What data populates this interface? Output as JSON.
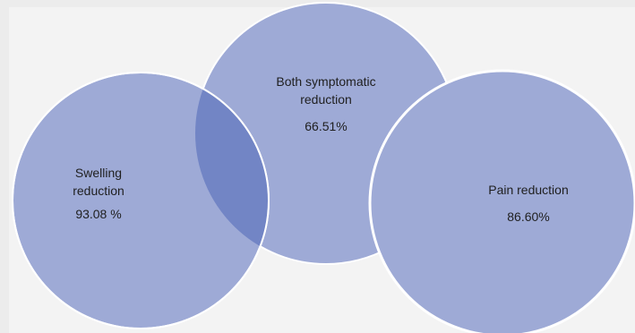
{
  "diagram": {
    "colors": {
      "circle_fill": "#9eaad6",
      "circle_stroke": "#ffffff",
      "overlap_fill": "#7285c5",
      "background": "#f3f3f3"
    },
    "sets": [
      {
        "name_line1": "Swelling",
        "name_line2": "reduction",
        "value": "93.08 %"
      },
      {
        "name_line1": "Both symptomatic",
        "name_line2": "reduction",
        "value": "66.51%"
      },
      {
        "name_line1": "Pain reduction",
        "name_line2": "",
        "value": "86.60%"
      }
    ]
  }
}
